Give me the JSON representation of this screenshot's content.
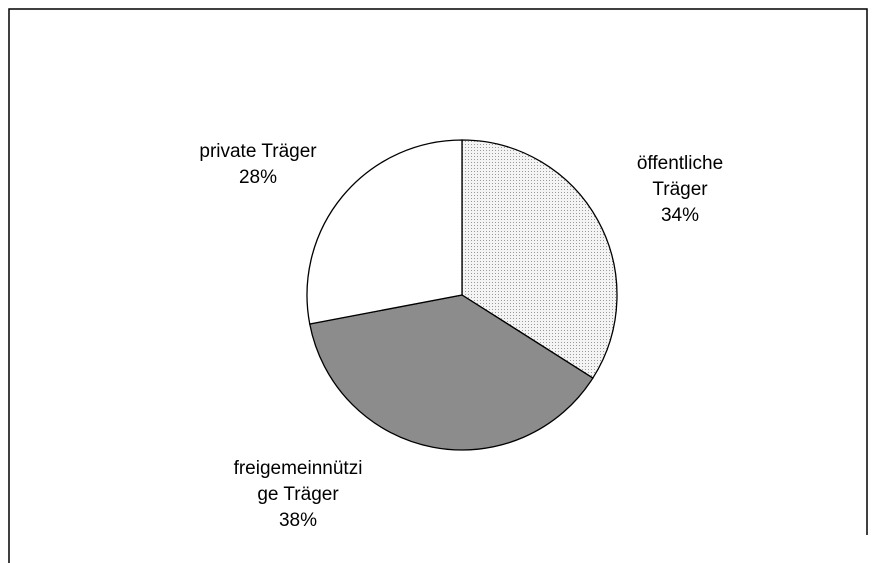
{
  "chart_data": {
    "type": "pie",
    "categories": [
      "öffentliche Träger",
      "freigemeinnützige Träger",
      "private Träger"
    ],
    "values": [
      34,
      38,
      28
    ],
    "value_labels": [
      "34%",
      "38%",
      "28%"
    ],
    "colors": [
      "#dedede",
      "#8c8c8c",
      "#ffffff"
    ]
  }
}
